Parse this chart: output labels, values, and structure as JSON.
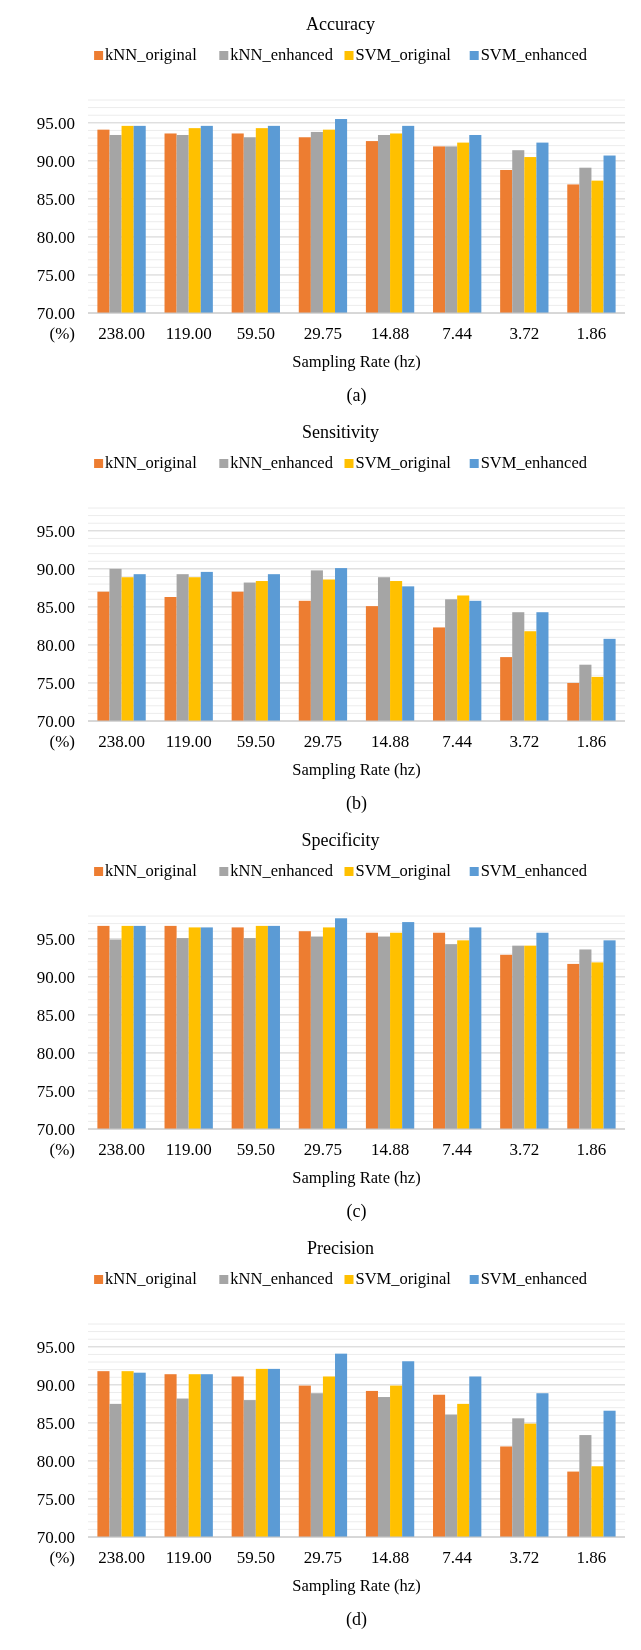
{
  "chart_data": [
    {
      "type": "bar",
      "title": "Accuracy",
      "xlabel": "Sampling Rate (hz)",
      "ylabel": "(%)",
      "annotations": [
        "(a)"
      ],
      "categories": [
        "238.00",
        "119.00",
        "59.50",
        "29.75",
        "14.88",
        "7.44",
        "3.72",
        "1.86"
      ],
      "series": [
        {
          "name": "kNN_original",
          "color": "#ed7d31",
          "values": [
            94.1,
            93.6,
            93.6,
            93.1,
            92.6,
            91.9,
            88.8,
            86.9
          ]
        },
        {
          "name": "kNN_enhanced",
          "color": "#a5a5a5",
          "values": [
            93.4,
            93.4,
            93.1,
            93.8,
            93.4,
            91.9,
            91.4,
            89.1
          ]
        },
        {
          "name": "SVM_original",
          "color": "#ffc000",
          "values": [
            94.6,
            94.3,
            94.3,
            94.1,
            93.6,
            92.4,
            90.5,
            87.4
          ]
        },
        {
          "name": "SVM_enhanced",
          "color": "#5b9bd5",
          "values": [
            94.6,
            94.6,
            94.6,
            95.5,
            94.6,
            93.4,
            92.4,
            90.7
          ]
        }
      ],
      "ylim": [
        70,
        98
      ],
      "yticks": [
        {
          "value": 70,
          "label": "70.00"
        },
        {
          "value": 71,
          "label": null
        },
        {
          "value": 72,
          "label": null
        },
        {
          "value": 73,
          "label": null
        },
        {
          "value": 74,
          "label": null
        },
        {
          "value": 75,
          "label": "75.00"
        },
        {
          "value": 76,
          "label": null
        },
        {
          "value": 77,
          "label": null
        },
        {
          "value": 78,
          "label": null
        },
        {
          "value": 79,
          "label": null
        },
        {
          "value": 80,
          "label": "80.00"
        },
        {
          "value": 81,
          "label": null
        },
        {
          "value": 82,
          "label": null
        },
        {
          "value": 83,
          "label": null
        },
        {
          "value": 84,
          "label": null
        },
        {
          "value": 85,
          "label": "85.00"
        },
        {
          "value": 86,
          "label": null
        },
        {
          "value": 87,
          "label": null
        },
        {
          "value": 88,
          "label": null
        },
        {
          "value": 89,
          "label": null
        },
        {
          "value": 90,
          "label": "90.00"
        },
        {
          "value": 91,
          "label": null
        },
        {
          "value": 92,
          "label": null
        },
        {
          "value": 93,
          "label": null
        },
        {
          "value": 94,
          "label": null
        },
        {
          "value": 95,
          "label": "95.00"
        },
        {
          "value": 96,
          "label": null
        },
        {
          "value": 97,
          "label": null
        },
        {
          "value": 98,
          "label": null
        }
      ],
      "grid": "y",
      "legend": "top"
    },
    {
      "type": "bar",
      "title": "Sensitivity",
      "xlabel": "Sampling Rate (hz)",
      "ylabel": "(%)",
      "annotations": [
        "(b)"
      ],
      "categories": [
        "238.00",
        "119.00",
        "59.50",
        "29.75",
        "14.88",
        "7.44",
        "3.72",
        "1.86"
      ],
      "series": [
        {
          "name": "kNN_original",
          "color": "#ed7d31",
          "values": [
            87.0,
            86.3,
            87.0,
            85.8,
            85.1,
            82.3,
            78.4,
            75.0
          ]
        },
        {
          "name": "kNN_enhanced",
          "color": "#a5a5a5",
          "values": [
            90.0,
            89.3,
            88.2,
            89.8,
            88.9,
            86.0,
            84.3,
            77.4
          ]
        },
        {
          "name": "SVM_original",
          "color": "#ffc000",
          "values": [
            88.9,
            88.9,
            88.4,
            88.6,
            88.4,
            86.5,
            81.8,
            75.8
          ]
        },
        {
          "name": "SVM_enhanced",
          "color": "#5b9bd5",
          "values": [
            89.3,
            89.6,
            89.3,
            90.1,
            87.7,
            85.8,
            84.3,
            80.8
          ]
        }
      ],
      "ylim": [
        70,
        98
      ],
      "yticks": [
        {
          "value": 70,
          "label": "70.00"
        },
        {
          "value": 71,
          "label": null
        },
        {
          "value": 72,
          "label": null
        },
        {
          "value": 73,
          "label": null
        },
        {
          "value": 74,
          "label": null
        },
        {
          "value": 75,
          "label": "75.00"
        },
        {
          "value": 76,
          "label": null
        },
        {
          "value": 77,
          "label": null
        },
        {
          "value": 78,
          "label": null
        },
        {
          "value": 79,
          "label": null
        },
        {
          "value": 80,
          "label": "80.00"
        },
        {
          "value": 81,
          "label": null
        },
        {
          "value": 82,
          "label": null
        },
        {
          "value": 83,
          "label": null
        },
        {
          "value": 84,
          "label": null
        },
        {
          "value": 85,
          "label": "85.00"
        },
        {
          "value": 86,
          "label": null
        },
        {
          "value": 87,
          "label": null
        },
        {
          "value": 88,
          "label": null
        },
        {
          "value": 89,
          "label": null
        },
        {
          "value": 90,
          "label": "90.00"
        },
        {
          "value": 91,
          "label": null
        },
        {
          "value": 92,
          "label": null
        },
        {
          "value": 93,
          "label": null
        },
        {
          "value": 94,
          "label": null
        },
        {
          "value": 95,
          "label": "95.00"
        },
        {
          "value": 96,
          "label": null
        },
        {
          "value": 97,
          "label": null
        },
        {
          "value": 98,
          "label": null
        }
      ],
      "grid": "y",
      "legend": "top"
    },
    {
      "type": "bar",
      "title": "Specificity",
      "xlabel": "Sampling Rate (hz)",
      "ylabel": "(%)",
      "annotations": [
        "(c)"
      ],
      "categories": [
        "238.00",
        "119.00",
        "59.50",
        "29.75",
        "14.88",
        "7.44",
        "3.72",
        "1.86"
      ],
      "series": [
        {
          "name": "kNN_original",
          "color": "#ed7d31",
          "values": [
            96.7,
            96.7,
            96.5,
            96.0,
            95.8,
            95.8,
            92.9,
            91.7
          ]
        },
        {
          "name": "kNN_enhanced",
          "color": "#a5a5a5",
          "values": [
            94.9,
            95.1,
            95.1,
            95.3,
            95.3,
            94.3,
            94.1,
            93.6
          ]
        },
        {
          "name": "SVM_original",
          "color": "#ffc000",
          "values": [
            96.7,
            96.5,
            96.7,
            96.5,
            95.8,
            94.8,
            94.1,
            91.9
          ]
        },
        {
          "name": "SVM_enhanced",
          "color": "#5b9bd5",
          "values": [
            96.7,
            96.5,
            96.7,
            97.7,
            97.2,
            96.5,
            95.8,
            94.8
          ]
        }
      ],
      "ylim": [
        70,
        98
      ],
      "yticks": [
        {
          "value": 70,
          "label": "70.00"
        },
        {
          "value": 71,
          "label": null
        },
        {
          "value": 72,
          "label": null
        },
        {
          "value": 73,
          "label": null
        },
        {
          "value": 74,
          "label": null
        },
        {
          "value": 75,
          "label": "75.00"
        },
        {
          "value": 76,
          "label": null
        },
        {
          "value": 77,
          "label": null
        },
        {
          "value": 78,
          "label": null
        },
        {
          "value": 79,
          "label": null
        },
        {
          "value": 80,
          "label": "80.00"
        },
        {
          "value": 81,
          "label": null
        },
        {
          "value": 82,
          "label": null
        },
        {
          "value": 83,
          "label": null
        },
        {
          "value": 84,
          "label": null
        },
        {
          "value": 85,
          "label": "85.00"
        },
        {
          "value": 86,
          "label": null
        },
        {
          "value": 87,
          "label": null
        },
        {
          "value": 88,
          "label": null
        },
        {
          "value": 89,
          "label": null
        },
        {
          "value": 90,
          "label": "90.00"
        },
        {
          "value": 91,
          "label": null
        },
        {
          "value": 92,
          "label": null
        },
        {
          "value": 93,
          "label": null
        },
        {
          "value": 94,
          "label": null
        },
        {
          "value": 95,
          "label": "95.00"
        },
        {
          "value": 96,
          "label": null
        },
        {
          "value": 97,
          "label": null
        },
        {
          "value": 98,
          "label": null
        }
      ],
      "grid": "y",
      "legend": "top"
    },
    {
      "type": "bar",
      "title": "Precision",
      "xlabel": "Sampling Rate (hz)",
      "ylabel": "(%)",
      "annotations": [
        "(d)"
      ],
      "categories": [
        "238.00",
        "119.00",
        "59.50",
        "29.75",
        "14.88",
        "7.44",
        "3.72",
        "1.86"
      ],
      "series": [
        {
          "name": "kNN_original",
          "color": "#ed7d31",
          "values": [
            91.8,
            91.4,
            91.1,
            89.9,
            89.2,
            88.7,
            81.9,
            78.6
          ]
        },
        {
          "name": "kNN_enhanced",
          "color": "#a5a5a5",
          "values": [
            87.5,
            88.2,
            88.0,
            88.9,
            88.4,
            86.1,
            85.6,
            83.4
          ]
        },
        {
          "name": "SVM_original",
          "color": "#ffc000",
          "values": [
            91.8,
            91.4,
            92.1,
            91.1,
            89.9,
            87.5,
            84.9,
            79.3
          ]
        },
        {
          "name": "SVM_enhanced",
          "color": "#5b9bd5",
          "values": [
            91.6,
            91.4,
            92.1,
            94.1,
            93.1,
            91.1,
            88.9,
            86.6
          ]
        }
      ],
      "ylim": [
        70,
        98
      ],
      "yticks": [
        {
          "value": 70,
          "label": "70.00"
        },
        {
          "value": 71,
          "label": null
        },
        {
          "value": 72,
          "label": null
        },
        {
          "value": 73,
          "label": null
        },
        {
          "value": 74,
          "label": null
        },
        {
          "value": 75,
          "label": "75.00"
        },
        {
          "value": 76,
          "label": null
        },
        {
          "value": 77,
          "label": null
        },
        {
          "value": 78,
          "label": null
        },
        {
          "value": 79,
          "label": null
        },
        {
          "value": 80,
          "label": "80.00"
        },
        {
          "value": 81,
          "label": null
        },
        {
          "value": 82,
          "label": null
        },
        {
          "value": 83,
          "label": null
        },
        {
          "value": 84,
          "label": null
        },
        {
          "value": 85,
          "label": "85.00"
        },
        {
          "value": 86,
          "label": null
        },
        {
          "value": 87,
          "label": null
        },
        {
          "value": 88,
          "label": null
        },
        {
          "value": 89,
          "label": null
        },
        {
          "value": 90,
          "label": "90.00"
        },
        {
          "value": 91,
          "label": null
        },
        {
          "value": 92,
          "label": null
        },
        {
          "value": 93,
          "label": null
        },
        {
          "value": 94,
          "label": null
        },
        {
          "value": 95,
          "label": "95.00"
        },
        {
          "value": 96,
          "label": null
        },
        {
          "value": 97,
          "label": null
        },
        {
          "value": 98,
          "label": null
        }
      ],
      "grid": "y",
      "legend": "top"
    }
  ]
}
